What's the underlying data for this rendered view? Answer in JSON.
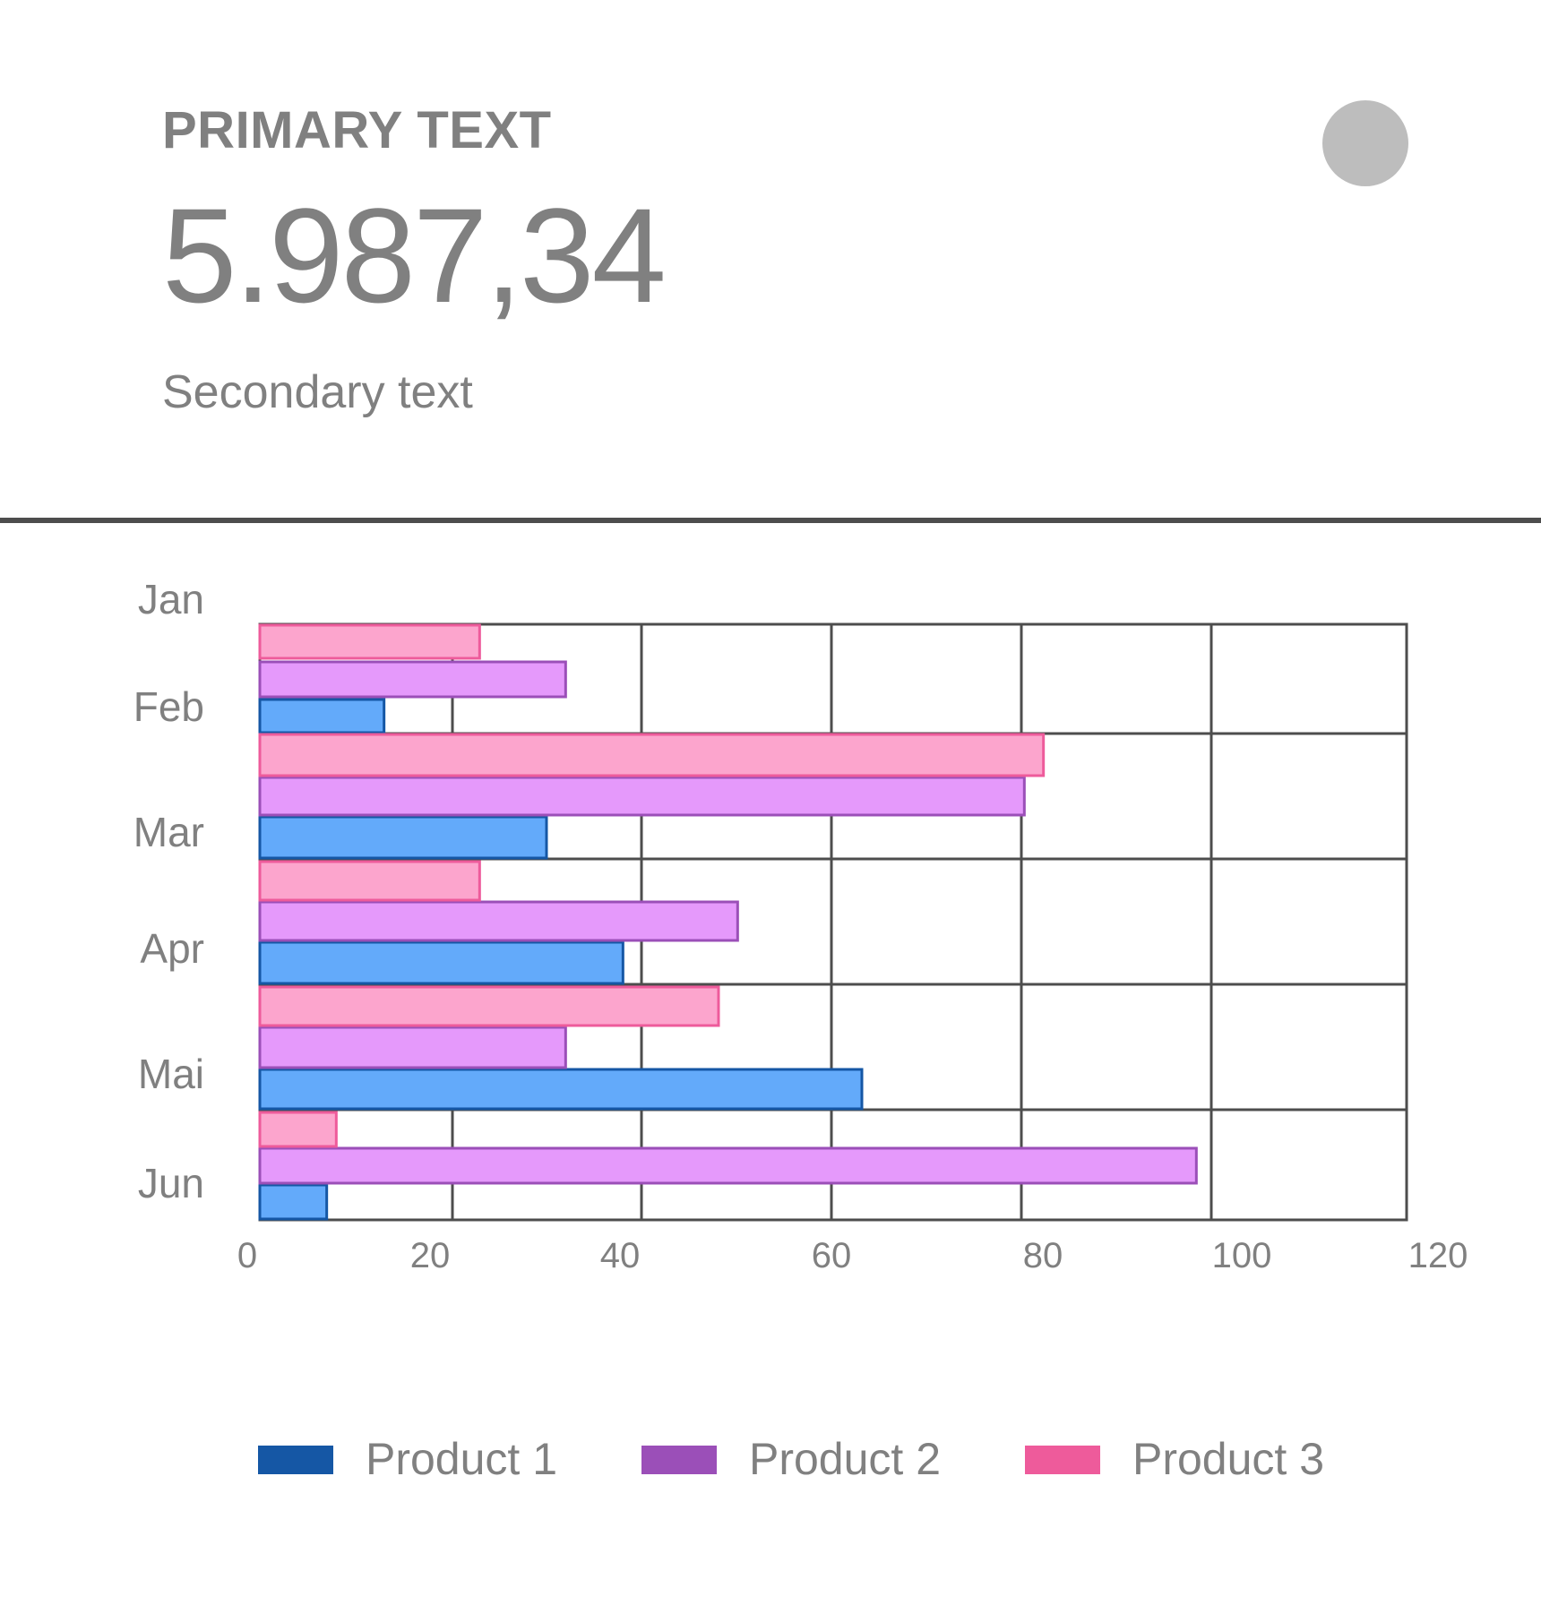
{
  "header": {
    "primary_label": "PRIMARY TEXT",
    "value": "5.987,34",
    "secondary": "Secondary text"
  },
  "colors": {
    "text": "#808080",
    "grid": "#4d4d4d",
    "avatar": "#bdbdbd",
    "product1_fill": "#63aafa",
    "product1_stroke": "#1557a5",
    "product2_fill": "#e599fb",
    "product2_stroke": "#9b4fb8",
    "product3_fill": "#fca5cd",
    "product3_stroke": "#ee5b9b"
  },
  "chart_data": {
    "type": "bar",
    "orientation": "horizontal",
    "categories": [
      "Jan",
      "Feb",
      "Mar",
      "Apr",
      "Mai",
      "Jun"
    ],
    "series": [
      {
        "name": "Product 1",
        "values": [
          13,
          30,
          38,
          63,
          7,
          null
        ]
      },
      {
        "name": "Product 2",
        "values": [
          32,
          80,
          50,
          32,
          98,
          null
        ]
      },
      {
        "name": "Product 3",
        "values": [
          23,
          82,
          23,
          48,
          8,
          null
        ]
      }
    ],
    "x_ticks": [
      "0",
      "20",
      "40",
      "60",
      "80",
      "100",
      "120"
    ],
    "xlim": [
      0,
      120
    ],
    "grid": true,
    "legend_position": "bottom"
  },
  "legend": {
    "items": [
      {
        "label": "Product 1"
      },
      {
        "label": "Product 2"
      },
      {
        "label": "Product 3"
      }
    ]
  }
}
